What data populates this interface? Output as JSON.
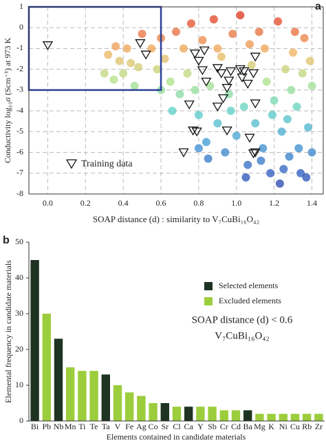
{
  "chart_data": [
    {
      "type": "scatter",
      "panel_label": "a",
      "x_label": "SOAP distance (d) : similarity to V₇CuBi₁₆O₄₂",
      "y_label": "Conductivity log₁₀σ (Scm⁻¹) at 973 K",
      "xlim": [
        -0.1,
        1.46
      ],
      "ylim": [
        -8,
        1
      ],
      "xticks": [
        {
          "value": 0,
          "label": "0.0"
        },
        {
          "value": 0.2,
          "label": "0.2"
        },
        {
          "value": 0.4,
          "label": "0.4"
        },
        {
          "value": 0.6,
          "label": "0.6"
        },
        {
          "value": 0.8,
          "label": "0.8"
        },
        {
          "value": 1.0,
          "label": "1.0"
        },
        {
          "value": 1.2,
          "label": "1.2"
        },
        {
          "value": 1.4,
          "label": "1.4"
        }
      ],
      "yticks": [
        -8,
        -7,
        -6,
        -5,
        -4,
        -3,
        -2,
        -1,
        0,
        1
      ],
      "grid": true,
      "colormap": {
        "values": [
          -7.5,
          -5.5,
          -4,
          -2.5,
          -1.2,
          0.6
        ],
        "colors": [
          "#2f4fb8",
          "#4aa0d8",
          "#63d3c8",
          "#b6e48c",
          "#f2b766",
          "#e2402a"
        ]
      },
      "highlight_box": {
        "xlim": [
          -0.1,
          0.6
        ],
        "ylim": [
          -3,
          1
        ],
        "color": "#2b3f9a"
      },
      "points": {
        "x": [
          0.32,
          0.36,
          0.38,
          0.4,
          0.42,
          0.44,
          0.35,
          0.46,
          0.3,
          0.48,
          0.5,
          0.55,
          0.58,
          0.6,
          0.62,
          0.65,
          0.68,
          0.7,
          0.66,
          0.72,
          0.74,
          0.6,
          0.76,
          0.78,
          0.8,
          0.82,
          0.84,
          0.86,
          0.88,
          0.9,
          0.92,
          0.94,
          0.96,
          0.98,
          1.0,
          0.85,
          0.9,
          0.97,
          0.8,
          1.02,
          1.04,
          1.06,
          1.08,
          1.1,
          1.12,
          1.14,
          1.16,
          1.18,
          1.2,
          1.05,
          1.15,
          1.19,
          1.13,
          1.07,
          1.22,
          1.24,
          1.26,
          1.28,
          1.3,
          1.32,
          1.34,
          1.36,
          1.38,
          1.4,
          1.25,
          1.33,
          1.37,
          1.4,
          1.29,
          1.23,
          1.31,
          1.35,
          1.27,
          1.39
        ],
        "y": [
          -1.3,
          -0.9,
          -1.6,
          -2.2,
          -1.0,
          -1.7,
          -2.5,
          -2.8,
          -2.2,
          -1.9,
          -0.3,
          -1.0,
          -2.0,
          -0.5,
          -1.5,
          -2.6,
          -0.2,
          -3.2,
          -4.0,
          -1.0,
          -2.2,
          -3.0,
          0.2,
          -3.0,
          -4.2,
          -0.6,
          -5.5,
          -2.8,
          0.4,
          -4.6,
          -1.4,
          -6.0,
          -3.2,
          -0.3,
          -5.2,
          -6.3,
          -1.0,
          -4.0,
          -5.8,
          0.6,
          -3.8,
          -6.6,
          -1.8,
          -4.6,
          -0.2,
          -5.8,
          -2.6,
          -7.0,
          -3.5,
          -7.2,
          -1.0,
          -4.2,
          -6.4,
          -0.8,
          0.3,
          -5.0,
          -2.0,
          -6.2,
          -1.2,
          -3.8,
          -7.0,
          -0.5,
          -4.8,
          -2.8,
          -6.8,
          -5.8,
          -7.2,
          -6.0,
          -3.0,
          -7.5,
          -0.2,
          -2.2,
          -4.4,
          -1.6
        ]
      },
      "series": [
        {
          "name": "Training data",
          "color": "#111111",
          "x": [
            0.0,
            0.49,
            0.52,
            0.78,
            0.83,
            0.8,
            0.82,
            0.84,
            0.9,
            0.92,
            0.97,
            0.96,
            0.95,
            1.02,
            1.04,
            1.03,
            1.06,
            1.1,
            1.09,
            1.1,
            0.75,
            0.9,
            0.93,
            0.77,
            0.79,
            0.95,
            1.07,
            1.1,
            1.09,
            0.72
          ],
          "y": [
            -0.85,
            -0.75,
            -1.3,
            -1.25,
            -1.1,
            -1.6,
            -2.05,
            -2.6,
            -1.95,
            -2.2,
            -2.1,
            -2.55,
            -2.9,
            -2.0,
            -2.1,
            -2.4,
            -2.7,
            -1.4,
            -2.2,
            -3.65,
            -3.7,
            -3.8,
            -3.4,
            -4.95,
            -5.0,
            -4.95,
            -5.3,
            -6.0,
            -6.05,
            -6.0
          ]
        }
      ]
    },
    {
      "type": "bar",
      "panel_label": "b",
      "x_label": "Elements contained in candidate materials",
      "y_label": "Elemental  frequency in candidate materials",
      "annotation": [
        "SOAP distance (d) < 0.6",
        "V₇CuBi₁₆O₄₂"
      ],
      "categories": [
        "Bi",
        "Pb",
        "Nb",
        "Mn",
        "Ti",
        "Te",
        "Ta",
        "V",
        "Fe",
        "Ag",
        "Co",
        "Sr",
        "Cl",
        "Ca",
        "Y",
        "Sb",
        "Cr",
        "Cd",
        "Ba",
        "Mg",
        "K",
        "Ni",
        "Cu",
        "Rb",
        "Zr"
      ],
      "series": [
        {
          "name": "Selected elements",
          "color": "#1e3322",
          "values": [
            45,
            null,
            23,
            null,
            null,
            null,
            13,
            null,
            null,
            null,
            null,
            5,
            null,
            4,
            null,
            null,
            null,
            null,
            3,
            null,
            null,
            null,
            null,
            null,
            null
          ]
        },
        {
          "name": "Excluded elements",
          "color": "#9ccd3c",
          "values": [
            null,
            30,
            null,
            15,
            14,
            14,
            null,
            10,
            8,
            7,
            5,
            null,
            4,
            null,
            4,
            4,
            3,
            3,
            null,
            2,
            2,
            2,
            2,
            2,
            2
          ]
        }
      ],
      "ylim": [
        0,
        50
      ],
      "yticks": [
        0,
        10,
        20,
        30,
        40,
        50
      ]
    }
  ]
}
